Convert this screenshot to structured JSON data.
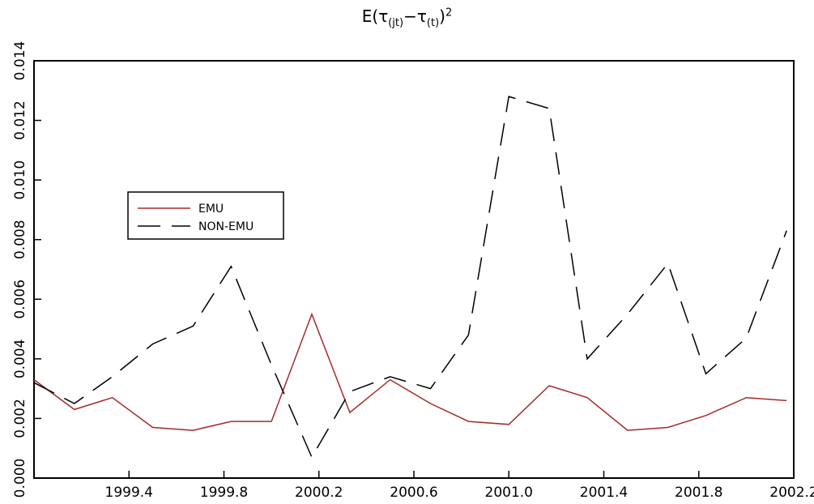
{
  "title": {
    "prefix": "E(",
    "tau1": "τ",
    "sub1": "(jt)",
    "minus": "−",
    "tau2": "τ",
    "sub2": "(t)",
    "suffix": ")",
    "power": "2"
  },
  "chart_data": {
    "type": "line",
    "title": "E(τ(jt)−τ(t))²",
    "xlabel": "",
    "ylabel": "",
    "xlim": [
      1999.0,
      2002.2
    ],
    "ylim": [
      0.0,
      0.014
    ],
    "x_ticks": [
      1999.4,
      1999.8,
      2000.2,
      2000.6,
      2001.0,
      2001.4,
      2001.8,
      2002.2
    ],
    "x_tick_labels": [
      "1999.4",
      "1999.8",
      "2000.2",
      "2000.6",
      "2001.0",
      "2001.4",
      "2001.8",
      "2002.2"
    ],
    "y_ticks": [
      0.0,
      0.002,
      0.004,
      0.006,
      0.008,
      0.01,
      0.012,
      0.014
    ],
    "y_tick_labels": [
      "0.000",
      "0.002",
      "0.004",
      "0.006",
      "0.008",
      "0.010",
      "0.012",
      "0.014"
    ],
    "grid": false,
    "legend_position": "left-middle",
    "series": [
      {
        "name": "EMU",
        "color": "#a52a2a",
        "dash": "solid",
        "x": [
          1999.0,
          1999.17,
          1999.33,
          1999.5,
          1999.67,
          1999.83,
          2000.0,
          2000.17,
          2000.33,
          2000.5,
          2000.67,
          2000.83,
          2001.0,
          2001.17,
          2001.33,
          2001.5,
          2001.67,
          2001.83,
          2002.0,
          2002.17
        ],
        "values": [
          0.0033,
          0.0023,
          0.0027,
          0.0017,
          0.0016,
          0.0019,
          0.0019,
          0.0055,
          0.0022,
          0.0033,
          0.0025,
          0.0019,
          0.0018,
          0.0031,
          0.0027,
          0.0016,
          0.0017,
          0.0021,
          0.0027,
          0.0026
        ]
      },
      {
        "name": "NON-EMU",
        "color": "#000000",
        "dash": "dashed",
        "x": [
          1999.0,
          1999.17,
          1999.33,
          1999.5,
          1999.67,
          1999.83,
          2000.0,
          2000.17,
          2000.33,
          2000.5,
          2000.67,
          2000.83,
          2001.0,
          2001.17,
          2001.33,
          2001.5,
          2001.67,
          2001.83,
          2002.0,
          2002.17
        ],
        "values": [
          0.0032,
          0.0025,
          0.0034,
          0.0045,
          0.0051,
          0.0071,
          0.0038,
          0.0007,
          0.0029,
          0.0034,
          0.003,
          0.0048,
          0.0128,
          0.0124,
          0.004,
          0.0055,
          0.0072,
          0.0035,
          0.0047,
          0.0083
        ]
      }
    ]
  }
}
